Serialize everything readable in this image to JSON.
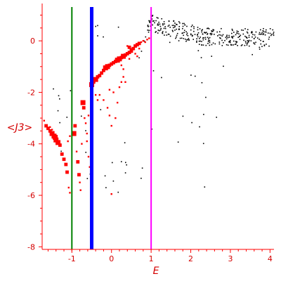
{
  "chart_data": {
    "type": "scatter",
    "xlabel": "E",
    "ylabel": "<J3>",
    "xlim": [
      -1.75,
      4.1
    ],
    "ylim": [
      -8.1,
      1.45
    ],
    "x_ticks": [
      "-1",
      "0",
      "1",
      "2",
      "3",
      "4"
    ],
    "x_tick_values": [
      -1,
      0,
      1,
      2,
      3,
      4
    ],
    "y_ticks": [
      "0",
      "-2",
      "-4",
      "-6",
      "-8"
    ],
    "y_tick_values": [
      0,
      -2,
      -4,
      -6,
      -8
    ],
    "grid": false,
    "colors": {
      "axis": "#ff0000",
      "red_points": "#ff0000",
      "black_points": "#000000",
      "line_green": "#008000",
      "line_blue": "#0000ff",
      "line_magenta": "#ff00ff"
    },
    "vertical_lines": [
      {
        "x": -1.0,
        "color": "#008000",
        "weight": "thin"
      },
      {
        "x": -0.5,
        "color": "#0000ff",
        "weight": "thick"
      },
      {
        "x": 1.0,
        "color": "#ff00ff",
        "weight": "thin"
      }
    ],
    "series_red": [
      [
        -1.7,
        -3.1,
        1
      ],
      [
        -1.65,
        -3.3,
        2
      ],
      [
        -1.6,
        -3.4,
        2
      ],
      [
        -1.55,
        -3.5,
        2
      ],
      [
        -1.5,
        -3.6,
        3
      ],
      [
        -1.45,
        -3.7,
        3
      ],
      [
        -1.42,
        -3.75,
        3
      ],
      [
        -1.4,
        -3.85,
        3
      ],
      [
        -1.35,
        -3.95,
        3
      ],
      [
        -1.3,
        -4.05,
        2
      ],
      [
        -1.55,
        -3.35,
        1
      ],
      [
        -1.5,
        -3.45,
        1
      ],
      [
        -1.25,
        -4.4,
        2
      ],
      [
        -1.2,
        -4.6,
        2
      ],
      [
        -1.15,
        -4.8,
        2
      ],
      [
        -1.12,
        -5.1,
        2
      ],
      [
        -1.08,
        -5.7,
        1
      ],
      [
        -1.05,
        -5.9,
        1
      ],
      [
        -1.1,
        -3.9,
        1
      ],
      [
        -1.05,
        -3.7,
        1
      ],
      [
        -0.95,
        -3.6,
        3
      ],
      [
        -0.92,
        -3.3,
        2
      ],
      [
        -0.88,
        -4.3,
        1
      ],
      [
        -0.85,
        -4.7,
        2
      ],
      [
        -0.82,
        -5.2,
        2
      ],
      [
        -0.8,
        -5.5,
        1
      ],
      [
        -0.78,
        -5.8,
        1
      ],
      [
        -0.75,
        -4.0,
        1
      ],
      [
        -0.72,
        -2.4,
        3
      ],
      [
        -0.7,
        -2.6,
        2
      ],
      [
        -0.68,
        -3.0,
        1
      ],
      [
        -0.65,
        -3.2,
        1
      ],
      [
        -0.62,
        -3.6,
        1
      ],
      [
        -0.58,
        -4.5,
        1
      ],
      [
        -0.55,
        -4.9,
        1
      ],
      [
        -0.52,
        -2.2,
        1
      ],
      [
        -0.58,
        -2.9,
        1
      ],
      [
        -0.62,
        -3.9,
        1
      ],
      [
        -0.5,
        -1.7,
        3
      ],
      [
        -0.45,
        -1.6,
        2
      ],
      [
        -0.4,
        -1.5,
        3
      ],
      [
        -0.35,
        -1.4,
        2
      ],
      [
        -0.3,
        -1.35,
        2
      ],
      [
        -0.25,
        -1.25,
        2
      ],
      [
        -0.2,
        -1.15,
        2
      ],
      [
        -0.15,
        -1.05,
        3
      ],
      [
        -0.1,
        -1.0,
        3
      ],
      [
        -0.05,
        -0.95,
        2
      ],
      [
        0.0,
        -0.9,
        2
      ],
      [
        0.05,
        -0.85,
        2
      ],
      [
        0.1,
        -0.8,
        2
      ],
      [
        0.15,
        -0.75,
        3
      ],
      [
        0.2,
        -0.7,
        3
      ],
      [
        0.25,
        -0.65,
        2
      ],
      [
        0.3,
        -0.6,
        3
      ],
      [
        0.35,
        -0.55,
        2
      ],
      [
        0.4,
        -0.5,
        2
      ],
      [
        0.45,
        -0.45,
        2
      ],
      [
        0.5,
        -0.4,
        2
      ],
      [
        0.55,
        -0.3,
        2
      ],
      [
        0.6,
        -0.2,
        2
      ],
      [
        0.65,
        -0.15,
        2
      ],
      [
        0.7,
        -0.1,
        2
      ],
      [
        0.75,
        -0.05,
        1
      ],
      [
        0.8,
        0.0,
        1
      ],
      [
        0.85,
        -0.05,
        1
      ],
      [
        0.9,
        0.05,
        1
      ],
      [
        0.95,
        0.1,
        1
      ],
      [
        0.45,
        -0.25,
        2
      ],
      [
        0.5,
        -0.35,
        2
      ],
      [
        0.4,
        -0.2,
        1
      ],
      [
        -0.3,
        -2.1,
        1
      ],
      [
        -0.2,
        -2.3,
        1
      ],
      [
        -0.1,
        -2.6,
        1
      ],
      [
        -0.05,
        -2.9,
        1
      ],
      [
        0.0,
        -3.3,
        1
      ],
      [
        0.1,
        -3.0,
        1
      ],
      [
        0.2,
        -1.8,
        1
      ],
      [
        0.25,
        -1.6,
        1
      ],
      [
        0.3,
        -1.4,
        1
      ],
      [
        0.35,
        -1.6,
        1
      ],
      [
        0.05,
        -2.0,
        1
      ],
      [
        -0.05,
        -1.9,
        1
      ],
      [
        0.0,
        -5.95,
        1
      ],
      [
        -0.4,
        -2.1,
        1
      ],
      [
        -0.35,
        -2.3,
        1
      ],
      [
        0.15,
        -2.4,
        1
      ],
      [
        0.6,
        -0.5,
        1
      ],
      [
        0.65,
        -0.6,
        1
      ],
      [
        0.7,
        -0.3,
        1
      ],
      [
        0.25,
        -0.95,
        1
      ],
      [
        0.3,
        -1.1,
        1
      ],
      [
        0.45,
        -0.7,
        1
      ]
    ],
    "series_black_seeded": {
      "main_band": {
        "count": 330,
        "x_range": [
          0.9,
          4.1
        ],
        "y_center": 0.15,
        "y_start": 0.7,
        "spread": 0.35
      },
      "sparse_tail": {
        "count": 60,
        "x_range": [
          -1.7,
          3.0
        ],
        "y_range": [
          -5.9,
          0.8
        ]
      }
    }
  }
}
